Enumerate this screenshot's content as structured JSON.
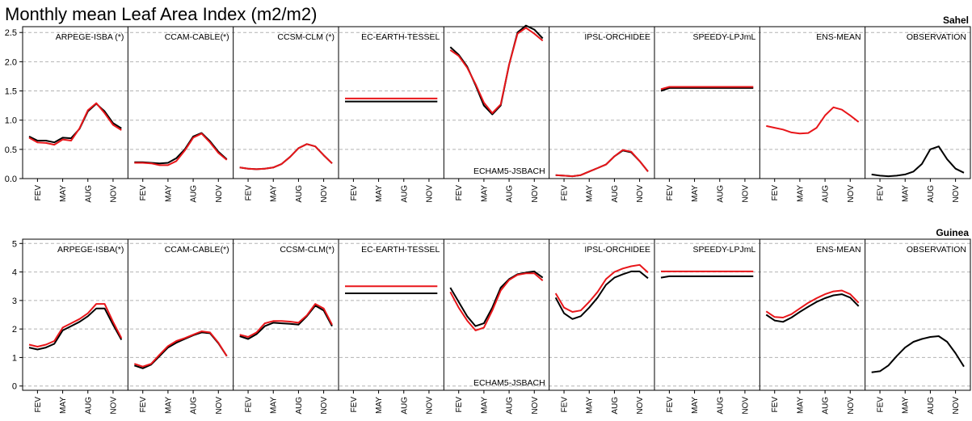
{
  "title": "Monthly mean Leaf Area Index  (m2/m2)",
  "colors": {
    "model": "#000000",
    "observation_or_alt": "#e8161a"
  },
  "x_tick_labels": [
    "FEV",
    "MAY",
    "AUG",
    "NOV"
  ],
  "chart_data": [
    {
      "type": "line",
      "region": "Sahel",
      "ylim": [
        0,
        2.6
      ],
      "yticks": [
        "0.0",
        "0.5",
        "1.0",
        "1.5",
        "2.0",
        "2.5"
      ],
      "months": [
        1,
        2,
        3,
        4,
        5,
        6,
        7,
        8,
        9,
        10,
        11,
        12
      ],
      "panels": [
        {
          "name": "ARPEGE-ISBA (*)",
          "series": [
            {
              "color": "black",
              "values": [
                0.72,
                0.65,
                0.65,
                0.62,
                0.7,
                0.69,
                0.85,
                1.15,
                1.28,
                1.15,
                0.95,
                0.86
              ]
            },
            {
              "color": "red",
              "values": [
                0.7,
                0.62,
                0.61,
                0.58,
                0.67,
                0.65,
                0.86,
                1.17,
                1.29,
                1.12,
                0.92,
                0.83
              ]
            }
          ]
        },
        {
          "name": "CCAM-CABLE(*)",
          "series": [
            {
              "color": "black",
              "values": [
                0.28,
                0.28,
                0.27,
                0.26,
                0.27,
                0.35,
                0.5,
                0.72,
                0.78,
                0.64,
                0.46,
                0.33
              ]
            },
            {
              "color": "red",
              "values": [
                0.27,
                0.27,
                0.26,
                0.23,
                0.23,
                0.3,
                0.48,
                0.7,
                0.77,
                0.62,
                0.44,
                0.32
              ]
            }
          ]
        },
        {
          "name": "CCSM-CLM (*)",
          "series": [
            {
              "color": "black",
              "values": [
                0.19,
                0.17,
                0.16,
                0.17,
                0.19,
                0.25,
                0.37,
                0.52,
                0.59,
                0.55,
                0.4,
                0.26
              ]
            },
            {
              "color": "red",
              "values": [
                0.19,
                0.17,
                0.16,
                0.17,
                0.19,
                0.25,
                0.37,
                0.52,
                0.59,
                0.55,
                0.4,
                0.26
              ]
            }
          ]
        },
        {
          "name": "EC-EARTH-TESSEL",
          "series": [
            {
              "color": "black",
              "values": [
                1.32,
                1.32,
                1.32,
                1.32,
                1.32,
                1.32,
                1.32,
                1.32,
                1.32,
                1.32,
                1.32,
                1.32
              ]
            },
            {
              "color": "red",
              "values": [
                1.37,
                1.37,
                1.37,
                1.37,
                1.37,
                1.37,
                1.37,
                1.37,
                1.37,
                1.37,
                1.37,
                1.37
              ]
            }
          ]
        },
        {
          "name": "ECHAM5-JSBACH",
          "label_position": "bottom",
          "series": [
            {
              "color": "black",
              "values": [
                2.25,
                2.12,
                1.92,
                1.6,
                1.25,
                1.1,
                1.25,
                1.95,
                2.5,
                2.62,
                2.55,
                2.4
              ]
            },
            {
              "color": "red",
              "values": [
                2.2,
                2.1,
                1.9,
                1.62,
                1.3,
                1.12,
                1.27,
                1.95,
                2.48,
                2.58,
                2.48,
                2.36
              ]
            }
          ]
        },
        {
          "name": "IPSL-ORCHIDEE",
          "series": [
            {
              "color": "black",
              "values": [
                0.06,
                0.05,
                0.04,
                0.06,
                0.12,
                0.18,
                0.24,
                0.38,
                0.48,
                0.45,
                0.3,
                0.12
              ]
            },
            {
              "color": "red",
              "values": [
                0.06,
                0.05,
                0.04,
                0.06,
                0.12,
                0.18,
                0.24,
                0.38,
                0.49,
                0.46,
                0.3,
                0.12
              ]
            }
          ]
        },
        {
          "name": "SPEEDY-LPJmL",
          "series": [
            {
              "color": "black",
              "values": [
                1.5,
                1.55,
                1.55,
                1.55,
                1.55,
                1.55,
                1.55,
                1.55,
                1.55,
                1.55,
                1.55,
                1.55
              ]
            },
            {
              "color": "red",
              "values": [
                1.53,
                1.57,
                1.57,
                1.57,
                1.57,
                1.57,
                1.57,
                1.57,
                1.57,
                1.57,
                1.57,
                1.57
              ]
            }
          ]
        },
        {
          "name": "ENS-MEAN",
          "series": [
            {
              "color": "red",
              "values": [
                0.9,
                0.87,
                0.84,
                0.79,
                0.77,
                0.78,
                0.87,
                1.08,
                1.22,
                1.18,
                1.08,
                0.97
              ]
            }
          ]
        },
        {
          "name": "OBSERVATION",
          "series": [
            {
              "color": "black",
              "values": [
                0.07,
                0.05,
                0.04,
                0.05,
                0.07,
                0.12,
                0.25,
                0.5,
                0.55,
                0.33,
                0.17,
                0.1
              ]
            }
          ]
        }
      ]
    },
    {
      "type": "line",
      "region": "Guinea",
      "ylim": [
        -0.15,
        5.15
      ],
      "yticks": [
        "0",
        "1",
        "2",
        "3",
        "4",
        "5"
      ],
      "months": [
        1,
        2,
        3,
        4,
        5,
        6,
        7,
        8,
        9,
        10,
        11,
        12
      ],
      "panels": [
        {
          "name": "ARPEGE-ISBA(*)",
          "series": [
            {
              "color": "black",
              "values": [
                1.35,
                1.28,
                1.35,
                1.48,
                1.95,
                2.1,
                2.25,
                2.45,
                2.72,
                2.72,
                2.15,
                1.62
              ]
            },
            {
              "color": "red",
              "values": [
                1.45,
                1.38,
                1.45,
                1.58,
                2.05,
                2.2,
                2.35,
                2.55,
                2.88,
                2.88,
                2.25,
                1.68
              ]
            }
          ]
        },
        {
          "name": "CCAM-CABLE(*)",
          "series": [
            {
              "color": "black",
              "values": [
                0.72,
                0.62,
                0.75,
                1.05,
                1.35,
                1.52,
                1.65,
                1.78,
                1.88,
                1.85,
                1.5,
                1.05
              ]
            },
            {
              "color": "red",
              "values": [
                0.78,
                0.68,
                0.78,
                1.1,
                1.4,
                1.58,
                1.68,
                1.8,
                1.92,
                1.88,
                1.52,
                1.05
              ]
            }
          ]
        },
        {
          "name": "CCSM-CLM(*)",
          "series": [
            {
              "color": "black",
              "values": [
                1.75,
                1.65,
                1.82,
                2.1,
                2.22,
                2.2,
                2.18,
                2.15,
                2.45,
                2.82,
                2.65,
                2.1
              ]
            },
            {
              "color": "red",
              "values": [
                1.8,
                1.72,
                1.88,
                2.2,
                2.28,
                2.28,
                2.26,
                2.22,
                2.48,
                2.88,
                2.72,
                2.15
              ]
            }
          ]
        },
        {
          "name": "EC-EARTH-TESSEL",
          "series": [
            {
              "color": "black",
              "values": [
                3.25,
                3.25,
                3.25,
                3.25,
                3.25,
                3.25,
                3.25,
                3.25,
                3.25,
                3.25,
                3.25,
                3.25
              ]
            },
            {
              "color": "red",
              "values": [
                3.5,
                3.5,
                3.5,
                3.5,
                3.5,
                3.5,
                3.5,
                3.5,
                3.5,
                3.5,
                3.5,
                3.5
              ]
            }
          ]
        },
        {
          "name": "ECHAM5-JSBACH",
          "label_position": "bottom",
          "series": [
            {
              "color": "black",
              "values": [
                3.45,
                2.95,
                2.45,
                2.1,
                2.2,
                2.75,
                3.45,
                3.75,
                3.92,
                3.98,
                4.02,
                3.8
              ]
            },
            {
              "color": "red",
              "values": [
                3.3,
                2.75,
                2.3,
                1.95,
                2.05,
                2.65,
                3.35,
                3.72,
                3.9,
                3.95,
                3.95,
                3.7
              ]
            }
          ]
        },
        {
          "name": "IPSL-ORCHIDEE",
          "series": [
            {
              "color": "black",
              "values": [
                3.1,
                2.55,
                2.35,
                2.45,
                2.75,
                3.1,
                3.55,
                3.8,
                3.92,
                4.02,
                4.02,
                3.78
              ]
            },
            {
              "color": "red",
              "values": [
                3.25,
                2.75,
                2.6,
                2.65,
                2.95,
                3.3,
                3.75,
                4.0,
                4.12,
                4.2,
                4.25,
                3.98
              ]
            }
          ]
        },
        {
          "name": "SPEEDY-LPJmL",
          "series": [
            {
              "color": "black",
              "values": [
                3.8,
                3.85,
                3.85,
                3.85,
                3.85,
                3.85,
                3.85,
                3.85,
                3.85,
                3.85,
                3.85,
                3.85
              ]
            },
            {
              "color": "red",
              "values": [
                4.02,
                4.02,
                4.02,
                4.02,
                4.02,
                4.02,
                4.02,
                4.02,
                4.02,
                4.02,
                4.02,
                4.02
              ]
            }
          ]
        },
        {
          "name": "ENS-MEAN",
          "series": [
            {
              "color": "black",
              "values": [
                2.5,
                2.3,
                2.25,
                2.4,
                2.6,
                2.78,
                2.95,
                3.08,
                3.18,
                3.22,
                3.1,
                2.8
              ]
            },
            {
              "color": "red",
              "values": [
                2.62,
                2.42,
                2.4,
                2.52,
                2.72,
                2.92,
                3.08,
                3.22,
                3.32,
                3.35,
                3.22,
                2.92
              ]
            }
          ]
        },
        {
          "name": "OBSERVATION",
          "series": [
            {
              "color": "black",
              "values": [
                0.48,
                0.52,
                0.72,
                1.05,
                1.35,
                1.55,
                1.65,
                1.72,
                1.75,
                1.55,
                1.15,
                0.68
              ]
            }
          ]
        }
      ]
    }
  ]
}
